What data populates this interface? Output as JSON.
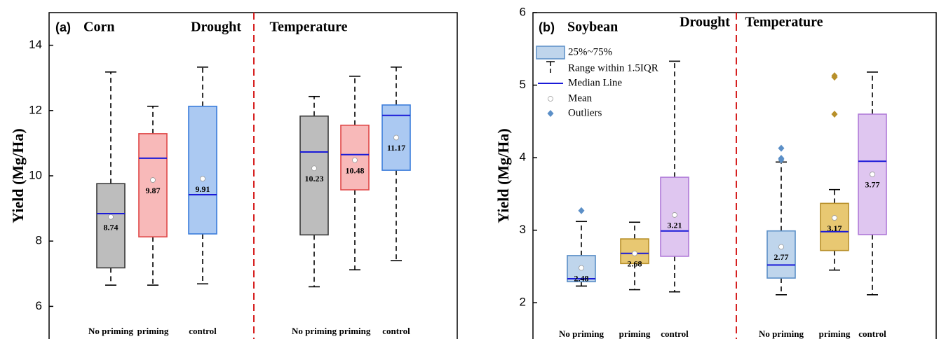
{
  "chart_data": [
    {
      "type": "box",
      "panel_label": "(a)",
      "title": "Corn",
      "y_label": "Yield (Mg/Ha)",
      "groups": [
        "Drought",
        "Temperature"
      ],
      "categories": [
        "No priming",
        "priming",
        "control",
        "No priming",
        "priming",
        "control"
      ],
      "ylim": [
        5,
        15
      ],
      "yticks": [
        6,
        8,
        10,
        12,
        14
      ],
      "median_color": "#1a1ad8",
      "boxes": [
        {
          "fill": "#bdbdbd",
          "stroke": "#3a3a3a",
          "whisker_low": 6.65,
          "q1": 7.18,
          "median": 8.84,
          "q3": 9.76,
          "whisker_high": 13.18,
          "mean": 8.74,
          "outliers": []
        },
        {
          "fill": "#f8b9b9",
          "stroke": "#e04848",
          "whisker_low": 6.65,
          "q1": 8.13,
          "median": 10.54,
          "q3": 11.29,
          "whisker_high": 12.13,
          "mean": 9.87,
          "outliers": []
        },
        {
          "fill": "#abc9f2",
          "stroke": "#3b7ddb",
          "whisker_low": 6.69,
          "q1": 8.22,
          "median": 9.42,
          "q3": 12.13,
          "whisker_high": 13.33,
          "mean": 9.91,
          "outliers": []
        },
        {
          "fill": "#bdbdbd",
          "stroke": "#3a3a3a",
          "whisker_low": 6.6,
          "q1": 8.19,
          "median": 10.73,
          "q3": 11.83,
          "whisker_high": 12.43,
          "mean": 10.23,
          "outliers": []
        },
        {
          "fill": "#f8b9b9",
          "stroke": "#e04848",
          "whisker_low": 7.12,
          "q1": 9.57,
          "median": 10.65,
          "q3": 11.55,
          "whisker_high": 13.05,
          "mean": 10.48,
          "outliers": []
        },
        {
          "fill": "#abc9f2",
          "stroke": "#3b7ddb",
          "whisker_low": 7.4,
          "q1": 10.17,
          "median": 11.85,
          "q3": 12.17,
          "whisker_high": 13.33,
          "mean": 11.17,
          "outliers": []
        }
      ]
    },
    {
      "type": "box",
      "panel_label": "(b)",
      "title": "Soybean",
      "y_label": "Yield (Mg/Ha)",
      "groups": [
        "Drought",
        "Temperature"
      ],
      "categories": [
        "No priming",
        "priming",
        "control",
        "No priming",
        "priming",
        "control"
      ],
      "ylim": [
        1.5,
        6
      ],
      "yticks": [
        2,
        3,
        4,
        5,
        6
      ],
      "median_color": "#1a1ad8",
      "legend": [
        "25%~75%",
        "Range within 1.5IQR",
        "Median Line",
        "Mean",
        "Outliers"
      ],
      "boxes": [
        {
          "fill": "#bfd5ec",
          "stroke": "#5b8fc7",
          "whisker_low": 2.23,
          "q1": 2.29,
          "median": 2.33,
          "q3": 2.65,
          "whisker_high": 3.12,
          "mean": 2.48,
          "outliers": [
            3.27
          ]
        },
        {
          "fill": "#e8c872",
          "stroke": "#b8902a",
          "whisker_low": 2.18,
          "q1": 2.54,
          "median": 2.68,
          "q3": 2.88,
          "whisker_high": 3.11,
          "mean": 2.68,
          "outliers": []
        },
        {
          "fill": "#dfc6f0",
          "stroke": "#b07ad8",
          "whisker_low": 2.15,
          "q1": 2.64,
          "median": 2.99,
          "q3": 3.73,
          "whisker_high": 5.33,
          "mean": 3.21,
          "outliers": []
        },
        {
          "fill": "#bfd5ec",
          "stroke": "#5b8fc7",
          "whisker_low": 2.11,
          "q1": 2.34,
          "median": 2.52,
          "q3": 2.99,
          "whisker_high": 3.94,
          "mean": 2.77,
          "outliers": [
            4.13,
            3.99,
            3.97
          ]
        },
        {
          "fill": "#e8c872",
          "stroke": "#b8902a",
          "whisker_low": 2.45,
          "q1": 2.72,
          "median": 2.98,
          "q3": 3.37,
          "whisker_high": 3.56,
          "mean": 3.17,
          "outliers": [
            5.13,
            5.11,
            4.6
          ]
        },
        {
          "fill": "#dfc6f0",
          "stroke": "#b07ad8",
          "whisker_low": 2.11,
          "q1": 2.94,
          "median": 3.95,
          "q3": 4.6,
          "whisker_high": 5.18,
          "mean": 3.77,
          "outliers": []
        }
      ]
    }
  ]
}
